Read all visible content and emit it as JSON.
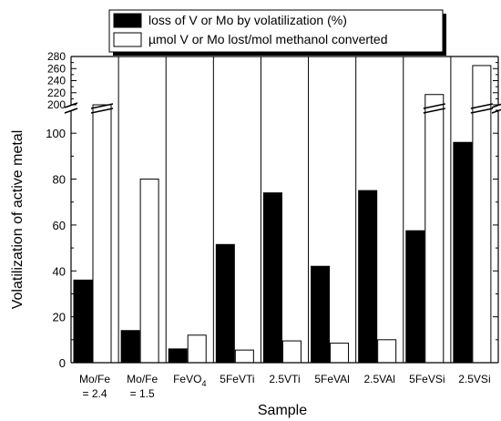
{
  "chart_data": {
    "type": "bar",
    "xlabel": "Sample",
    "ylabel": "Volatilization of active metal",
    "categories": [
      [
        "Mo/Fe",
        "= 2.4"
      ],
      [
        "Mo/Fe",
        "= 1.5"
      ],
      [
        "FeVO",
        "4"
      ],
      [
        "5FeVTi"
      ],
      [
        "2.5VTi"
      ],
      [
        "5FeVAl"
      ],
      [
        "2.5VAl"
      ],
      [
        "5FeVSi"
      ],
      [
        "2.5VSi"
      ]
    ],
    "series": [
      {
        "name": "loss of V or Mo by volatilization (%)",
        "fill": "#000000",
        "values": [
          36,
          14,
          6,
          51.5,
          74,
          42,
          75,
          57.5,
          96
        ]
      },
      {
        "name": "µmol V or Mo lost/mol methanol converted",
        "fill": "#ffffff",
        "values": [
          190,
          80,
          12,
          5.5,
          9.5,
          8.5,
          10,
          217,
          265
        ]
      }
    ],
    "y_axis": {
      "broken": true,
      "lower_range": [
        0,
        110
      ],
      "lower_ticks": [
        0,
        20,
        40,
        60,
        80,
        100
      ],
      "upper_range": [
        190,
        280
      ],
      "upper_ticks": [
        200,
        220,
        240,
        260,
        280
      ]
    },
    "legend_position": "top"
  }
}
